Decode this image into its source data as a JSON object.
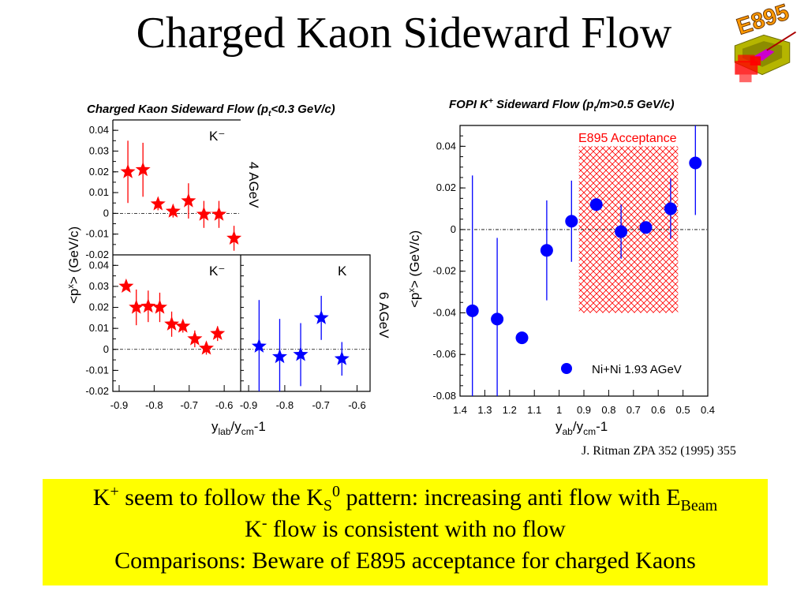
{
  "slide": {
    "title": "Charged Kaon Sideward Flow",
    "citation": "J. Ritman ZPA 352 (1995) 355",
    "summary": {
      "line1_a": "K",
      "line1_a_sup": "+",
      "line1_b": " seem to follow the K",
      "line1_b_sup": "0",
      "line1_b_sub": "S",
      "line1_c": " pattern: increasing anti flow with E",
      "line1_c_sub": "Beam",
      "line2_a": "K",
      "line2_a_sup": "-",
      "line2_b": " flow is consistent with no flow",
      "line3": "Comparisons: Beware of E895 acceptance for charged Kaons"
    },
    "logo": {
      "text": "E895",
      "color": "#ff9900"
    }
  },
  "chart_data": [
    {
      "type": "scatter",
      "title": "Charged Kaon Sideward Flow (p",
      "title_sub": "t",
      "title_tail": "<0.3 GeV/c)",
      "ylabel": "<p",
      "ylabel_sup": "x",
      "ylabel_tail": "> (GeV/c)",
      "xlabel": {
        "base1": "y",
        "sub1": "lab",
        "base2": "/y",
        "sub2": "cm",
        "tail": "-1"
      },
      "grid": false,
      "zero_line": true,
      "panels": [
        {
          "label": "K⁻",
          "energy": "4 AGeV",
          "xlim": [
            -0.918,
            -0.553
          ],
          "ylim": [
            -0.02,
            0.045
          ],
          "yticks": [
            "0.04",
            "0.03",
            "0.02",
            "0.01",
            "0",
            "-0.01",
            "-0.02"
          ],
          "xticks": [],
          "series": [
            {
              "color": "#ff0000",
              "marker": "star",
              "points": [
                {
                  "x": -0.875,
                  "y": 0.02,
                  "err": 0.015
                },
                {
                  "x": -0.832,
                  "y": 0.021,
                  "err": 0.013
                },
                {
                  "x": -0.789,
                  "y": 0.0045,
                  "err": 0.003
                },
                {
                  "x": -0.746,
                  "y": 0.001,
                  "err": 0.003
                },
                {
                  "x": -0.702,
                  "y": 0.006,
                  "err": 0.0085
                },
                {
                  "x": -0.658,
                  "y": -0.0005,
                  "err": 0.0065
                },
                {
                  "x": -0.615,
                  "y": -0.0005,
                  "err": 0.0065
                },
                {
                  "x": -0.572,
                  "y": -0.012,
                  "err": 0.006
                }
              ]
            }
          ]
        },
        {
          "label": "K⁻",
          "energy": "",
          "xlim": [
            -0.918,
            -0.553
          ],
          "ylim": [
            -0.02,
            0.045
          ],
          "yticks": [
            "0.04",
            "0.03",
            "0.02",
            "0.01",
            "0",
            "-0.01",
            "-0.02"
          ],
          "xticks": [
            "-0.9",
            "-0.8",
            "-0.7",
            "-0.6"
          ],
          "series": [
            {
              "color": "#ff0000",
              "marker": "star",
              "points": [
                {
                  "x": -0.88,
                  "y": 0.03,
                  "err": 0
                },
                {
                  "x": -0.851,
                  "y": 0.02,
                  "err": 0.0085
                },
                {
                  "x": -0.817,
                  "y": 0.0205,
                  "err": 0.0075
                },
                {
                  "x": -0.784,
                  "y": 0.02,
                  "err": 0.007
                },
                {
                  "x": -0.75,
                  "y": 0.012,
                  "err": 0.006
                },
                {
                  "x": -0.718,
                  "y": 0.011,
                  "err": 0.003
                },
                {
                  "x": -0.684,
                  "y": 0.005,
                  "err": 0.004
                },
                {
                  "x": -0.651,
                  "y": 0.0005,
                  "err": 0.003
                },
                {
                  "x": -0.619,
                  "y": 0.0075,
                  "err": 0.0035
                }
              ]
            }
          ]
        },
        {
          "label": "K",
          "energy": "6 AGeV",
          "xlim": [
            -0.922,
            -0.564
          ],
          "ylim": [
            -0.02,
            0.045
          ],
          "yticks": [],
          "xticks": [
            "-0.9",
            "-0.8",
            "-0.7",
            "-0.6"
          ],
          "series": [
            {
              "color": "#0000ff",
              "marker": "star",
              "points": [
                {
                  "x": -0.871,
                  "y": 0.0015,
                  "err": 0.022
                },
                {
                  "x": -0.814,
                  "y": -0.0035,
                  "err": 0.018
                },
                {
                  "x": -0.756,
                  "y": -0.0025,
                  "err": 0.015
                },
                {
                  "x": -0.699,
                  "y": 0.015,
                  "err": 0.0105
                },
                {
                  "x": -0.642,
                  "y": -0.0045,
                  "err": 0.008
                }
              ]
            }
          ]
        }
      ]
    },
    {
      "type": "scatter",
      "title": "FOPI K",
      "title_sup": "+",
      "title_mid": " Sideward Flow (p",
      "title_sub": "t",
      "title_tail": "/m>0.5 GeV/c)",
      "ylabel": "<p",
      "ylabel_sup": "x",
      "ylabel_tail": "> (GeV/c)",
      "xlabel": {
        "base1": "y",
        "sub1": "ab",
        "base2": "/y",
        "sub2": "cm",
        "tail": "-1"
      },
      "xlim": [
        1.4,
        0.4
      ],
      "x_reversed": true,
      "ylim": [
        -0.08,
        0.05
      ],
      "xticks": [
        "1.4",
        "1.3",
        "1.2",
        "1.1",
        "1",
        "0.9",
        "0.8",
        "0.7",
        "0.6",
        "0.5",
        "0.4"
      ],
      "yticks": [
        "0.04",
        "0.02",
        "0",
        "-0.02",
        "-0.04",
        "-0.06",
        "-0.08"
      ],
      "grid": false,
      "zero_line": true,
      "legend": {
        "position": "bottom-right",
        "entries": [
          {
            "name": "Ni+Ni 1.93 AGeV",
            "color": "#0000ff",
            "marker": "circle"
          }
        ]
      },
      "acceptance": {
        "label": "E895 Acceptance",
        "color": "#ff0000",
        "xrange": [
          0.92,
          0.52
        ],
        "yrange": [
          -0.04,
          0.04
        ]
      },
      "series": [
        {
          "name": "Ni+Ni 1.93 AGeV",
          "color": "#0000ff",
          "marker": "circle",
          "points": [
            {
              "x": 1.35,
              "y": -0.039,
              "err": 0.065
            },
            {
              "x": 1.25,
              "y": -0.043,
              "err": 0.039
            },
            {
              "x": 1.15,
              "y": -0.052,
              "err": 0
            },
            {
              "x": 1.05,
              "y": -0.01,
              "err": 0.024
            },
            {
              "x": 0.95,
              "y": 0.004,
              "err": 0.0195
            },
            {
              "x": 0.85,
              "y": 0.012,
              "err": 0
            },
            {
              "x": 0.75,
              "y": -0.001,
              "err": 0.013
            },
            {
              "x": 0.65,
              "y": 0.001,
              "err": 0
            },
            {
              "x": 0.55,
              "y": 0.01,
              "err": 0.0145
            },
            {
              "x": 0.45,
              "y": 0.032,
              "err": 0.025
            }
          ]
        }
      ]
    }
  ]
}
